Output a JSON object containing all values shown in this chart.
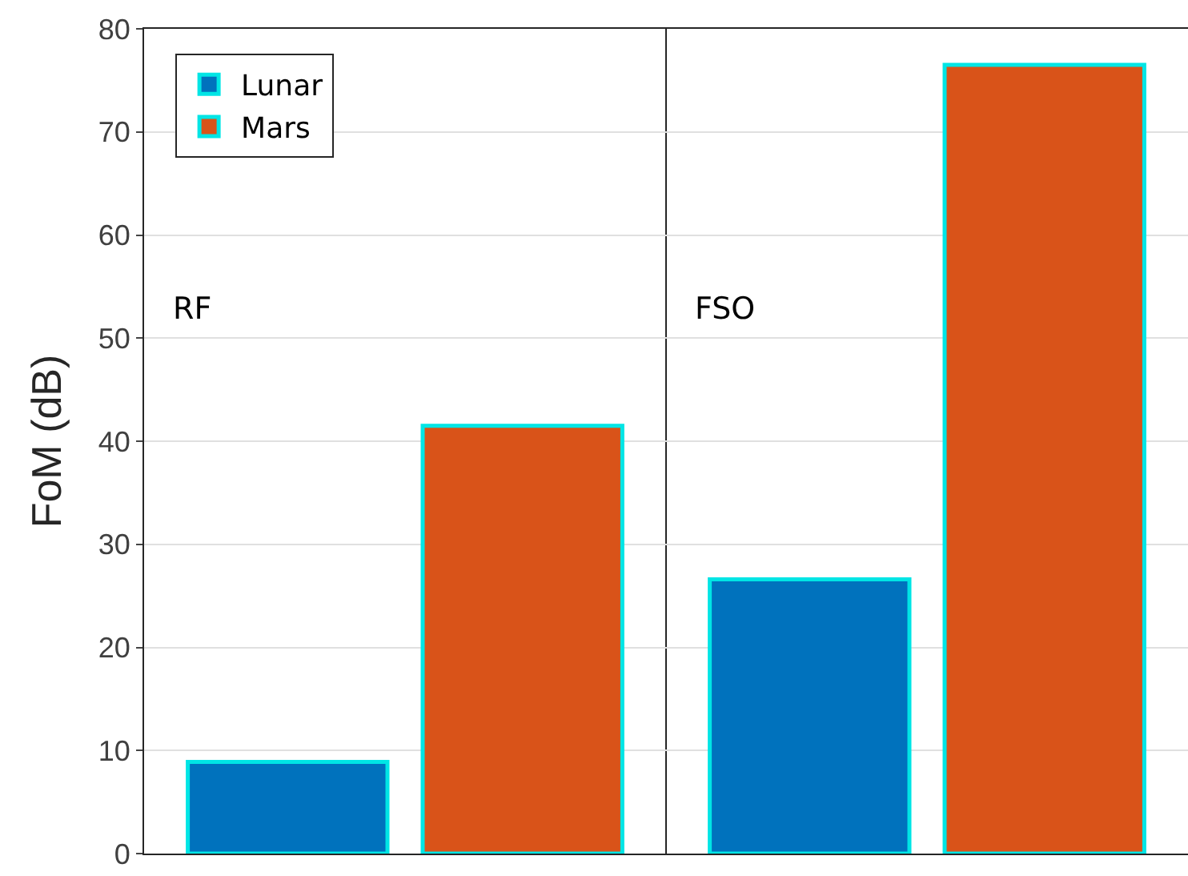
{
  "chart_data": {
    "type": "bar",
    "ylabel": "FoM (dB)",
    "categories": [
      null,
      null
    ],
    "series": [
      {
        "name": "Lunar",
        "color": "#0072bd",
        "values": [
          8.9,
          26.6
        ]
      },
      {
        "name": "Mars",
        "color": "#d95319",
        "values": [
          41.5,
          76.5
        ]
      }
    ],
    "ylim": [
      0,
      80
    ],
    "yticks": [
      0,
      10,
      20,
      30,
      40,
      50,
      60,
      70,
      80
    ],
    "annotations": [
      "RF",
      "FSO"
    ],
    "tick_labels": "y",
    "grid": true,
    "legend": "top left"
  }
}
